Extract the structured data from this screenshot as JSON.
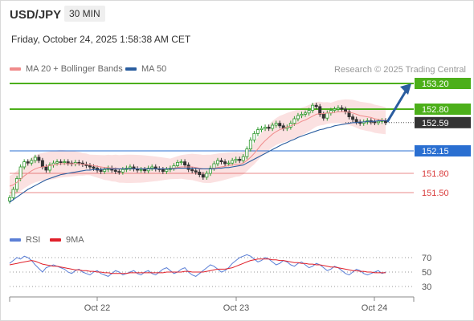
{
  "header": {
    "symbol": "USD/JPY",
    "timeframe": "30 MIN",
    "datetime": "Friday, October 24, 2025 1:58:38 AM CET"
  },
  "legend_main": [
    {
      "label": "MA 20 + Bollinger Bands",
      "color": "#f08b8b"
    },
    {
      "label": "MA 50",
      "color": "#2a5d9f"
    }
  ],
  "credit": "Research © 2025 Trading Central",
  "legend_rsi": [
    {
      "label": "RSI",
      "color": "#5b7fd6"
    },
    {
      "label": "9MA",
      "color": "#e0202a"
    }
  ],
  "colors": {
    "resistance": "#4caf1a",
    "current": "#333333",
    "pivot": "#2a6fd1",
    "support": "#d93a3a",
    "arrow": "#2a5d9f",
    "candle_up": "#2e9a2e",
    "candle_down": "#333333"
  },
  "chart_data": {
    "type": "line",
    "title": "USD/JPY",
    "y_range": [
      151.0,
      153.35
    ],
    "x_ticks": [
      "Oct 22",
      "Oct 23",
      "Oct 24"
    ],
    "levels": [
      {
        "value": 153.2,
        "label": "153.20",
        "kind": "resistance"
      },
      {
        "value": 152.8,
        "label": "152.80",
        "kind": "resistance"
      },
      {
        "value": 152.59,
        "label": "152.59",
        "kind": "current"
      },
      {
        "value": 152.15,
        "label": "152.15",
        "kind": "pivot"
      },
      {
        "value": 151.8,
        "label": "151.80",
        "kind": "support"
      },
      {
        "value": 151.5,
        "label": "151.50",
        "kind": "support"
      }
    ],
    "price_close": [
      151.42,
      151.55,
      151.72,
      151.9,
      151.98,
      151.96,
      152.0,
      152.05,
      152.0,
      151.9,
      151.85,
      151.93,
      151.96,
      151.98,
      151.97,
      151.98,
      151.96,
      151.95,
      151.97,
      151.96,
      151.94,
      151.92,
      151.9,
      151.88,
      151.85,
      151.83,
      151.86,
      151.88,
      151.85,
      151.83,
      151.82,
      151.86,
      151.88,
      151.9,
      151.87,
      151.85,
      151.86,
      151.84,
      151.88,
      151.9,
      151.87,
      151.86,
      151.83,
      151.86,
      151.88,
      151.92,
      151.97,
      151.98,
      151.93,
      151.86,
      151.84,
      151.82,
      151.78,
      151.74,
      151.8,
      151.88,
      151.95,
      152.0,
      151.98,
      151.95,
      151.96,
      152.0,
      152.02,
      152.0,
      152.06,
      152.18,
      152.32,
      152.42,
      152.48,
      152.5,
      152.52,
      152.5,
      152.55,
      152.58,
      152.54,
      152.5,
      152.52,
      152.58,
      152.65,
      152.7,
      152.72,
      152.74,
      152.78,
      152.86,
      152.84,
      152.72,
      152.66,
      152.74,
      152.78,
      152.8,
      152.82,
      152.8,
      152.76,
      152.68,
      152.64,
      152.6,
      152.58,
      152.6,
      152.62,
      152.6,
      152.59,
      152.61,
      152.62,
      152.59
    ],
    "ma20": [
      151.6,
      151.62,
      151.66,
      151.71,
      151.76,
      151.8,
      151.84,
      151.87,
      151.89,
      151.9,
      151.91,
      151.92,
      151.93,
      151.94,
      151.95,
      151.95,
      151.95,
      151.95,
      151.95,
      151.95,
      151.94,
      151.94,
      151.93,
      151.92,
      151.91,
      151.9,
      151.89,
      151.89,
      151.88,
      151.88,
      151.87,
      151.87,
      151.87,
      151.87,
      151.87,
      151.87,
      151.87,
      151.87,
      151.87,
      151.87,
      151.87,
      151.87,
      151.87,
      151.87,
      151.87,
      151.88,
      151.89,
      151.9,
      151.9,
      151.9,
      151.9,
      151.89,
      151.88,
      151.87,
      151.87,
      151.87,
      151.88,
      151.89,
      151.9,
      151.91,
      151.92,
      151.93,
      151.94,
      151.94,
      151.96,
      152.0,
      152.05,
      152.11,
      152.18,
      152.25,
      152.31,
      152.36,
      152.41,
      152.45,
      152.48,
      152.5,
      152.52,
      152.54,
      152.56,
      152.58,
      152.61,
      152.63,
      152.66,
      152.69,
      152.72,
      152.73,
      152.73,
      152.74,
      152.74,
      152.75,
      152.76,
      152.76,
      152.76,
      152.75,
      152.74,
      152.72,
      152.7,
      152.69,
      152.68,
      152.67,
      152.65,
      152.64,
      152.63,
      152.62
    ],
    "ma50": [
      151.35,
      151.39,
      151.43,
      151.47,
      151.51,
      151.55,
      151.58,
      151.61,
      151.64,
      151.67,
      151.7,
      151.72,
      151.74,
      151.76,
      151.78,
      151.79,
      151.8,
      151.81,
      151.82,
      151.83,
      151.84,
      151.85,
      151.85,
      151.86,
      151.86,
      151.86,
      151.87,
      151.87,
      151.87,
      151.87,
      151.87,
      151.87,
      151.87,
      151.87,
      151.87,
      151.87,
      151.87,
      151.87,
      151.87,
      151.87,
      151.87,
      151.87,
      151.87,
      151.87,
      151.87,
      151.87,
      151.88,
      151.88,
      151.88,
      151.88,
      151.88,
      151.88,
      151.87,
      151.87,
      151.87,
      151.87,
      151.87,
      151.88,
      151.88,
      151.89,
      151.89,
      151.9,
      151.91,
      151.92,
      151.93,
      151.96,
      151.99,
      152.02,
      152.05,
      152.08,
      152.11,
      152.14,
      152.17,
      152.2,
      152.23,
      152.26,
      152.28,
      152.31,
      152.33,
      152.36,
      152.38,
      152.4,
      152.42,
      152.44,
      152.46,
      152.48,
      152.49,
      152.51,
      152.52,
      152.54,
      152.55,
      152.56,
      152.57,
      152.58,
      152.59,
      152.59,
      152.6,
      152.6,
      152.61,
      152.61,
      152.61,
      152.62,
      152.62,
      152.62
    ],
    "rsi": {
      "ticks": [
        70,
        50,
        30
      ],
      "y_range": [
        20,
        80
      ],
      "rsi": [
        62,
        66,
        70,
        68,
        72,
        70,
        66,
        60,
        55,
        50,
        56,
        58,
        60,
        58,
        56,
        54,
        50,
        48,
        52,
        54,
        50,
        48,
        46,
        50,
        52,
        48,
        46,
        44,
        48,
        52,
        50,
        46,
        48,
        50,
        52,
        48,
        46,
        50,
        52,
        48,
        46,
        50,
        54,
        56,
        52,
        48,
        50,
        54,
        56,
        50,
        46,
        44,
        48,
        52,
        56,
        60,
        58,
        54,
        50,
        52,
        56,
        62,
        66,
        70,
        72,
        74,
        72,
        68,
        64,
        66,
        70,
        68,
        64,
        60,
        62,
        66,
        64,
        60,
        58,
        62,
        64,
        60,
        56,
        58,
        62,
        60,
        56,
        52,
        54,
        58,
        56,
        52,
        48,
        46,
        50,
        54,
        52,
        48,
        46,
        48,
        50,
        52,
        48,
        50
      ],
      "ma9": [
        60,
        61,
        62,
        63,
        64,
        65,
        66,
        65,
        63,
        61,
        60,
        59,
        58,
        58,
        57,
        56,
        55,
        54,
        53,
        53,
        52,
        52,
        51,
        51,
        50,
        50,
        49,
        49,
        48,
        48,
        48,
        48,
        48,
        49,
        49,
        49,
        49,
        49,
        49,
        49,
        49,
        49,
        49,
        50,
        50,
        50,
        50,
        50,
        51,
        51,
        50,
        50,
        50,
        50,
        51,
        52,
        53,
        54,
        54,
        54,
        55,
        56,
        58,
        60,
        62,
        64,
        66,
        67,
        68,
        68,
        68,
        68,
        67,
        67,
        66,
        66,
        65,
        64,
        63,
        63,
        62,
        62,
        61,
        61,
        60,
        60,
        59,
        58,
        57,
        57,
        56,
        55,
        54,
        53,
        52,
        52,
        51,
        51,
        50,
        50,
        49,
        49,
        49,
        49
      ]
    }
  }
}
